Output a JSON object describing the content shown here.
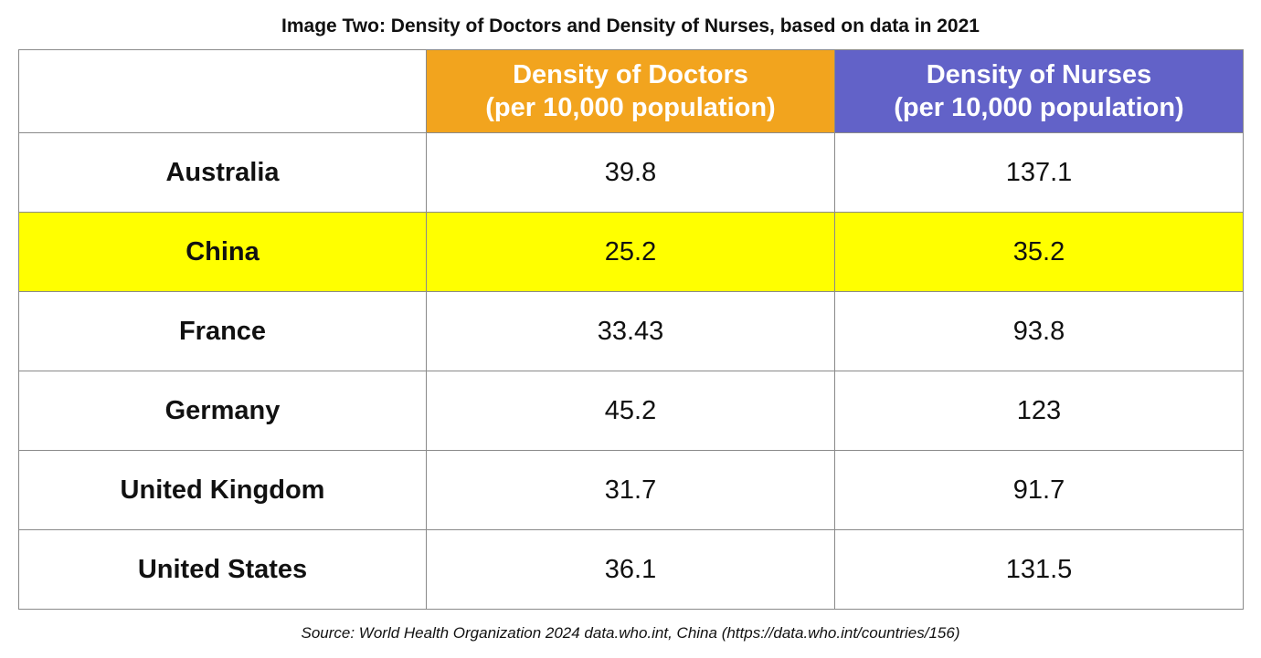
{
  "title": "Image Two: Density of Doctors and Density of Nurses, based on data in 2021",
  "source": "Source: World Health Organization 2024 data.who.int, China (https://data.who.int/countries/156)",
  "colors": {
    "doctors_header": "#f2a41e",
    "nurses_header": "#6262c8",
    "highlight_row": "#ffff00",
    "row_default": "#ffffff"
  },
  "chart_data": {
    "type": "table",
    "title": "Image Two: Density of Doctors and Density of Nurses, based on data in 2021",
    "columns": [
      {
        "line1": "Density of Doctors",
        "line2": "(per 10,000 population)"
      },
      {
        "line1": "Density of Nurses",
        "line2": "(per 10,000 population)"
      }
    ],
    "rows": [
      {
        "country": "Australia",
        "doctors": "39.8",
        "nurses": "137.1",
        "highlighted": false
      },
      {
        "country": "China",
        "doctors": "25.2",
        "nurses": "35.2",
        "highlighted": true
      },
      {
        "country": "France",
        "doctors": "33.43",
        "nurses": "93.8",
        "highlighted": false
      },
      {
        "country": "Germany",
        "doctors": "45.2",
        "nurses": "123",
        "highlighted": false
      },
      {
        "country": "United Kingdom",
        "doctors": "31.7",
        "nurses": "91.7",
        "highlighted": false
      },
      {
        "country": "United States",
        "doctors": "36.1",
        "nurses": "131.5",
        "highlighted": false
      }
    ]
  }
}
